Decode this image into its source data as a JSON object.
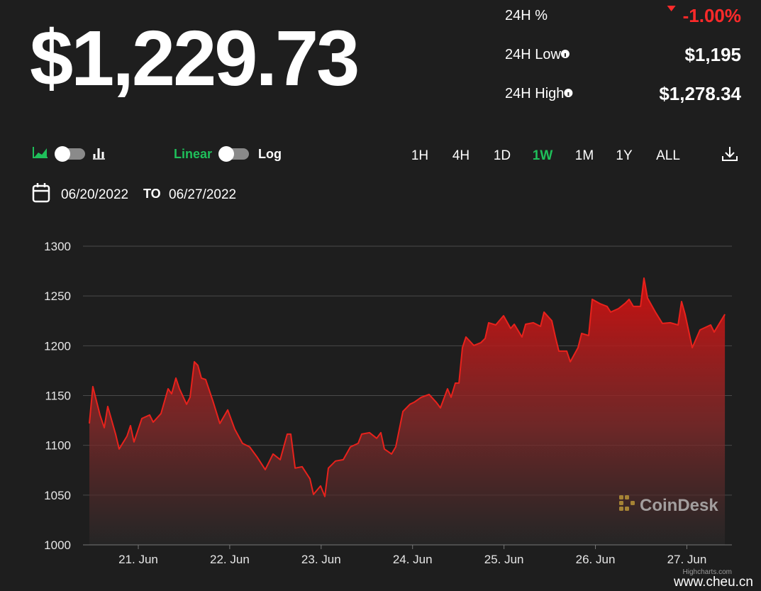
{
  "header": {
    "price": "$1,229.73",
    "stats": [
      {
        "label": "24H %",
        "value": "-1.00%"
      },
      {
        "label": "24H Low",
        "value": "$1,195"
      },
      {
        "label": "24H High",
        "value": "$1,278.34"
      }
    ]
  },
  "controls": {
    "scale_options": [
      "Linear",
      "Log"
    ],
    "ranges": [
      "1H",
      "4H",
      "1D",
      "1W",
      "1M",
      "1Y",
      "ALL"
    ],
    "active_range": 3
  },
  "date_range": {
    "from": "06/20/2022",
    "separator": "TO",
    "to": "06/27/2022"
  },
  "chart_data": {
    "type": "area",
    "color": "#e8221c",
    "x": [
      0.465,
      0.503,
      0.581,
      0.628,
      0.666,
      0.752,
      0.791,
      0.876,
      0.915,
      0.953,
      1.039,
      1.124,
      1.163,
      1.248,
      1.326,
      1.365,
      1.411,
      1.45,
      1.528,
      1.566,
      1.613,
      1.652,
      1.69,
      1.737,
      1.815,
      1.892,
      1.978,
      2.055,
      2.14,
      2.218,
      2.303,
      2.389,
      2.474,
      2.552,
      2.629,
      2.668,
      2.715,
      2.792,
      2.877,
      2.916,
      2.994,
      3.04,
      3.079,
      3.157,
      3.242,
      3.32,
      3.405,
      3.444,
      3.529,
      3.607,
      3.653,
      3.692,
      3.77,
      3.816,
      3.894,
      3.971,
      4.018,
      4.095,
      4.181,
      4.258,
      4.305,
      4.382,
      4.421,
      4.468,
      4.507,
      4.545,
      4.584,
      4.67,
      4.747,
      4.794,
      4.832,
      4.91,
      4.995,
      5.073,
      5.112,
      5.197,
      5.236,
      5.321,
      5.399,
      5.438,
      5.523,
      5.562,
      5.6,
      5.686,
      5.725,
      5.81,
      5.849,
      5.926,
      5.965,
      6.05,
      6.128,
      6.167,
      6.252,
      6.33,
      6.368,
      6.415,
      6.493,
      6.531,
      6.57,
      6.656,
      6.733,
      6.818,
      6.904,
      6.942,
      6.981,
      7.059,
      7.144,
      7.26,
      7.299,
      7.416
    ],
    "values": [
      1121.9,
      1159.0,
      1130.5,
      1117.7,
      1139.0,
      1111.2,
      1096.3,
      1109.1,
      1119.8,
      1103.4,
      1126.9,
      1130.5,
      1123.3,
      1131.9,
      1156.8,
      1151.8,
      1167.5,
      1156.8,
      1141.2,
      1148.3,
      1183.9,
      1180.3,
      1167.5,
      1166.1,
      1144.7,
      1121.9,
      1135.5,
      1116.2,
      1102.0,
      1098.4,
      1087.7,
      1075.6,
      1091.3,
      1085.6,
      1111.2,
      1111.2,
      1077.1,
      1078.5,
      1066.4,
      1050.7,
      1059.2,
      1048.6,
      1077.1,
      1084.2,
      1085.6,
      1098.4,
      1102.0,
      1111.2,
      1112.7,
      1107.0,
      1112.7,
      1096.3,
      1091.3,
      1098.4,
      1134.0,
      1141.2,
      1143.3,
      1148.3,
      1151.1,
      1143.3,
      1137.6,
      1156.8,
      1148.3,
      1162.5,
      1162.5,
      1198.1,
      1208.8,
      1200.3,
      1203.1,
      1207.4,
      1223.1,
      1220.9,
      1230.2,
      1217.4,
      1221.6,
      1208.8,
      1221.6,
      1223.1,
      1219.5,
      1233.8,
      1225.2,
      1208.8,
      1194.6,
      1194.6,
      1183.9,
      1198.1,
      1212.4,
      1210.3,
      1246.6,
      1242.3,
      1239.5,
      1233.8,
      1237.3,
      1243.0,
      1246.6,
      1239.5,
      1239.5,
      1267.9,
      1248.0,
      1233.8,
      1222.4,
      1223.1,
      1220.9,
      1244.4,
      1231.6,
      1198.1,
      1215.9,
      1220.9,
      1213.8,
      1231.6
    ],
    "xlim": [
      0.395,
      7.493
    ],
    "xticks": [
      {
        "value": 1,
        "label": "21. Jun"
      },
      {
        "value": 2,
        "label": "22. Jun"
      },
      {
        "value": 3,
        "label": "23. Jun"
      },
      {
        "value": 4,
        "label": "24. Jun"
      },
      {
        "value": 5,
        "label": "25. Jun"
      },
      {
        "value": 6,
        "label": "26. Jun"
      },
      {
        "value": 7,
        "label": "27. Jun"
      }
    ],
    "ylim": [
      1000,
      1300
    ],
    "yticks": [
      1000,
      1050,
      1100,
      1150,
      1200,
      1250,
      1300
    ],
    "grid": true,
    "watermark": "CoinDesk",
    "credits": "Highcharts.com"
  },
  "site_watermark": "www.cheu.cn"
}
